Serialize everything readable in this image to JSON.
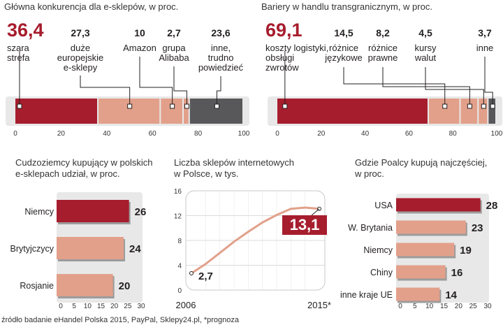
{
  "colors": {
    "accent": "#a61d2d",
    "light": "#e2a08a",
    "dark": "#58585a",
    "panel": "#e8e8e8"
  },
  "source": "źródło badanie eHandel Polska 2015, PayPal, Sklepy24.pl, *prognoza",
  "chart_data": [
    {
      "type": "bar",
      "title": "Główna konkurencja dla e-sklepów, w proc.",
      "orientation": "horizontal-stacked",
      "segments": [
        {
          "value": 36.4,
          "value_label": "36,4",
          "label": [
            "szara",
            "strefa"
          ],
          "color": "#a61d2d"
        },
        {
          "value": 27.3,
          "value_label": "27,3",
          "label": [
            "duże",
            "europejskie",
            "e-sklepy"
          ],
          "color": "#e2a08a"
        },
        {
          "value": 10,
          "value_label": "10",
          "label": [
            "Amazon"
          ],
          "color": "#e2a08a"
        },
        {
          "value": 2.7,
          "value_label": "2,7",
          "label": [
            "grupa",
            "Alibaba"
          ],
          "color": "#e2a08a"
        },
        {
          "value": 23.6,
          "value_label": "23,6",
          "label": [
            "inne,",
            "trudno",
            "powiedzieć"
          ],
          "color": "#58585a"
        }
      ],
      "xlim": [
        0,
        100
      ],
      "ticks": [
        "0",
        "20",
        "40",
        "60",
        "80",
        "100"
      ]
    },
    {
      "type": "bar",
      "title": "Bariery w handlu transgranicznym, w proc.",
      "orientation": "horizontal-stacked",
      "segments": [
        {
          "value": 69.1,
          "value_label": "69,1",
          "label": [
            "koszty logistyki,",
            "obsługi",
            "zwrotów"
          ],
          "color": "#a61d2d"
        },
        {
          "value": 14.5,
          "value_label": "14,5",
          "label": [
            "różnice",
            "językowe"
          ],
          "color": "#e2a08a"
        },
        {
          "value": 8.2,
          "value_label": "8,2",
          "label": [
            "różnice",
            "prawne"
          ],
          "color": "#e2a08a"
        },
        {
          "value": 4.5,
          "value_label": "4,5",
          "label": [
            "kursy",
            "walut"
          ],
          "color": "#e2a08a"
        },
        {
          "value": 3.7,
          "value_label": "3,7",
          "label": [
            "inne"
          ],
          "color": "#58585a"
        }
      ],
      "xlim": [
        0,
        100
      ],
      "ticks": [
        "0",
        "20",
        "40",
        "60",
        "80",
        "100"
      ]
    },
    {
      "type": "bar",
      "title": [
        "Cudzoziemcy kupujący w polskich",
        "e-sklepach udział, w proc."
      ],
      "orientation": "horizontal",
      "categories": [
        "Niemcy",
        "Brytyjczycy",
        "Rosjanie"
      ],
      "values": [
        26,
        24,
        20
      ],
      "value_labels": [
        "26",
        "24",
        "20"
      ],
      "xlim": [
        0,
        30
      ],
      "ticks": [
        "0",
        "5",
        "10",
        "15",
        "20",
        "25",
        "30"
      ]
    },
    {
      "type": "line",
      "title": [
        "Liczba sklepów internetowych",
        "w Polsce, w tys."
      ],
      "x": [
        "2006",
        "2007",
        "2008",
        "2009",
        "2010",
        "2011",
        "2012",
        "2013",
        "2014",
        "2015*"
      ],
      "values": [
        2.7,
        4.2,
        6.0,
        7.8,
        9.4,
        10.9,
        12.1,
        13.1,
        13.3,
        13.1
      ],
      "first_label": "2,7",
      "last_label": "13,1",
      "ylim": [
        0,
        16
      ],
      "yticks": [
        "0",
        "4",
        "8",
        "12",
        "16"
      ],
      "xtick_labels": [
        "2006",
        "2015*"
      ],
      "grid": true
    },
    {
      "type": "bar",
      "title": [
        "Gdzie Poalcy kupują najczęściej,",
        "w proc."
      ],
      "orientation": "horizontal",
      "categories": [
        "USA",
        "W. Brytania",
        "Niemcy",
        "Chiny",
        "inne kraje UE"
      ],
      "values": [
        28,
        23,
        19,
        16,
        14
      ],
      "value_labels": [
        "28",
        "23",
        "19",
        "16",
        "14"
      ],
      "xlim": [
        0,
        30
      ],
      "ticks": [
        "0",
        "5",
        "10",
        "15",
        "20",
        "25",
        "30"
      ]
    }
  ]
}
